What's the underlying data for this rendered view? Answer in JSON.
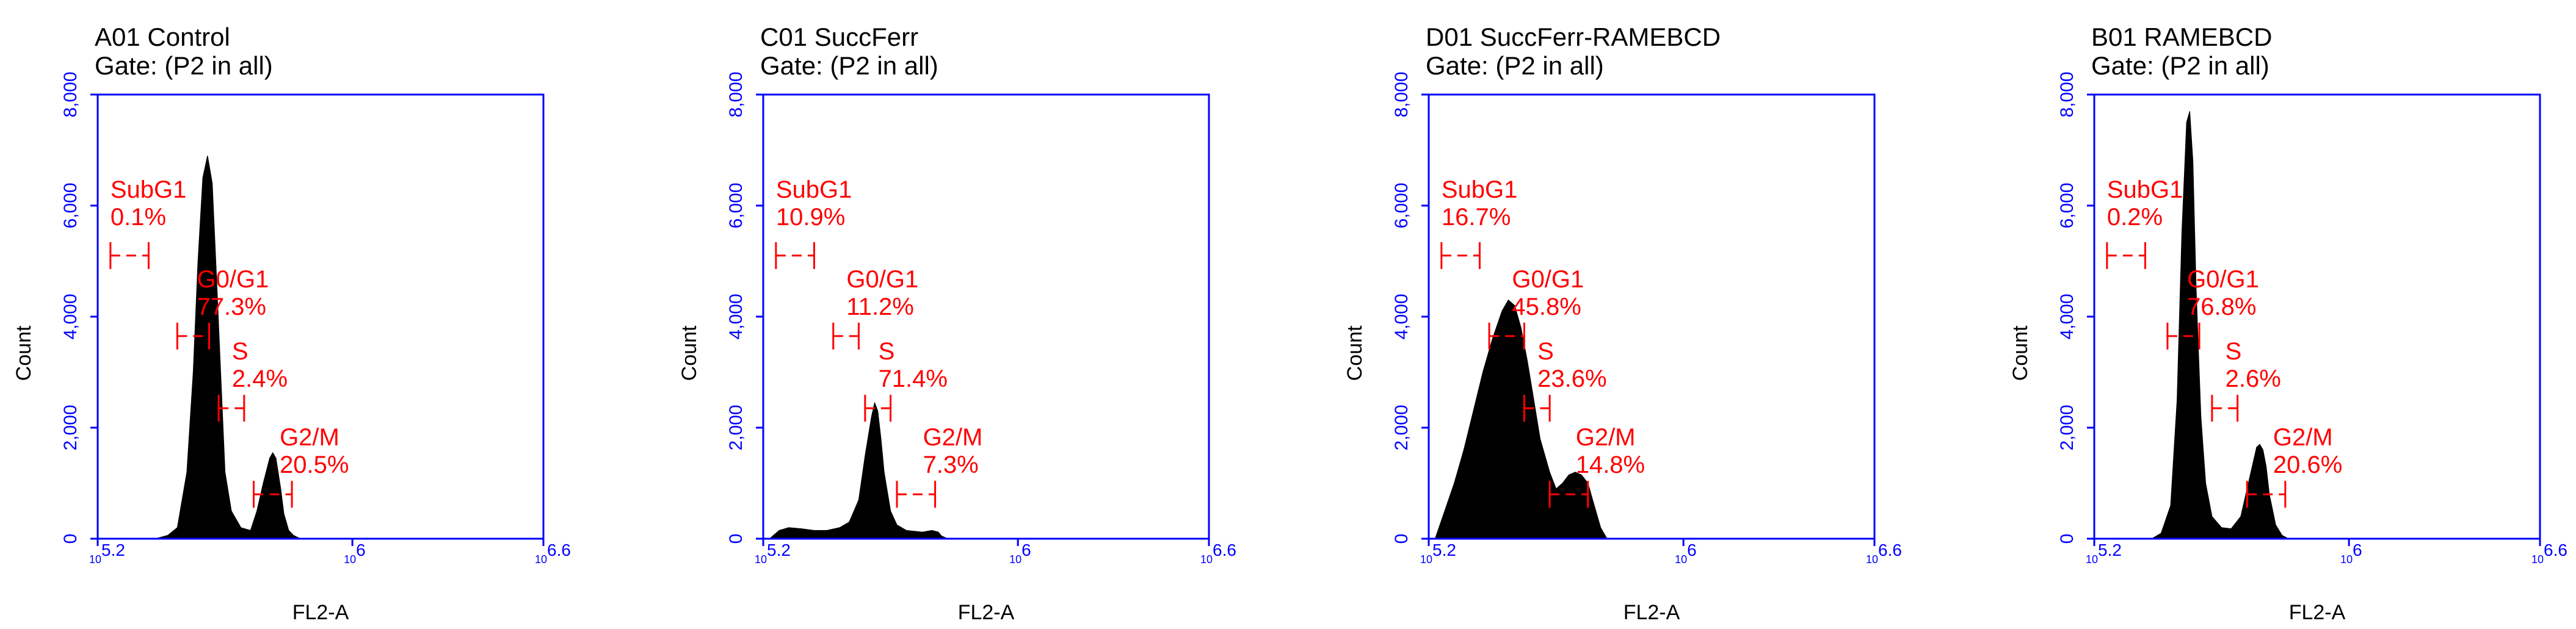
{
  "chart_data": [
    {
      "type": "area",
      "title": "A01 Control",
      "subtitle": "Gate: (P2 in all)",
      "xlabel": "FL2-A",
      "ylabel": "Count",
      "xlim": [
        5.2,
        6.6
      ],
      "ylim": [
        0,
        8000
      ],
      "x_ticks": [
        {
          "base": "10",
          "exp": "5.2"
        },
        {
          "base": "10",
          "exp": "6"
        },
        {
          "base": "10",
          "exp": "6.6"
        }
      ],
      "y_ticks": [
        "0",
        "2,000",
        "4,000",
        "6,000",
        "8,000"
      ],
      "x": [
        5.38,
        5.42,
        5.45,
        5.48,
        5.5,
        5.515,
        5.53,
        5.545,
        5.56,
        5.575,
        5.59,
        5.6,
        5.62,
        5.65,
        5.68,
        5.7,
        5.72,
        5.74,
        5.75,
        5.76,
        5.775,
        5.785,
        5.8,
        5.815,
        5.83,
        5.84
      ],
      "counts": [
        0,
        60,
        200,
        1200,
        3000,
        5000,
        6500,
        6900,
        6400,
        4500,
        2500,
        1200,
        500,
        200,
        150,
        500,
        1000,
        1450,
        1550,
        1450,
        900,
        450,
        150,
        60,
        20,
        0
      ],
      "gates": [
        {
          "name": "SubG1",
          "pct": "0.1%",
          "x1": 5.24,
          "x2": 5.36,
          "y": 5100
        },
        {
          "name": "G0/G1",
          "pct": "77.3%",
          "x1": 5.45,
          "x2": 5.55,
          "y": 3650
        },
        {
          "name": "S",
          "pct": "2.4%",
          "x1": 5.58,
          "x2": 5.66,
          "y": 2350
        },
        {
          "name": "G2/M",
          "pct": "20.5%",
          "x1": 5.69,
          "x2": 5.81,
          "y": 800
        }
      ]
    },
    {
      "type": "area",
      "title": "C01 SuccFerr",
      "subtitle": "Gate: (P2 in all)",
      "xlabel": "FL2-A",
      "ylabel": "Count",
      "xlim": [
        5.2,
        6.6
      ],
      "ylim": [
        0,
        8000
      ],
      "x_ticks": [
        {
          "base": "10",
          "exp": "5.2"
        },
        {
          "base": "10",
          "exp": "6"
        },
        {
          "base": "10",
          "exp": "6.6"
        }
      ],
      "y_ticks": [
        "0",
        "2,000",
        "4,000",
        "6,000",
        "8,000"
      ],
      "x": [
        5.22,
        5.25,
        5.28,
        5.32,
        5.36,
        5.4,
        5.44,
        5.47,
        5.5,
        5.52,
        5.54,
        5.55,
        5.56,
        5.57,
        5.58,
        5.6,
        5.62,
        5.65,
        5.7,
        5.73,
        5.75,
        5.76,
        5.78
      ],
      "counts": [
        0,
        150,
        200,
        180,
        150,
        150,
        200,
        300,
        700,
        1500,
        2200,
        2450,
        2300,
        1800,
        1200,
        500,
        250,
        150,
        120,
        150,
        120,
        50,
        0
      ],
      "gates": [
        {
          "name": "SubG1",
          "pct": "10.9%",
          "x1": 5.24,
          "x2": 5.36,
          "y": 5100
        },
        {
          "name": "G0/G1",
          "pct": "11.2%",
          "x1": 5.42,
          "x2": 5.5,
          "y": 3650
        },
        {
          "name": "S",
          "pct": "71.4%",
          "x1": 5.52,
          "x2": 5.6,
          "y": 2350
        },
        {
          "name": "G2/M",
          "pct": "7.3%",
          "x1": 5.62,
          "x2": 5.74,
          "y": 800
        }
      ]
    },
    {
      "type": "area",
      "title": "D01 SuccFerr-RAMEBCD",
      "subtitle": "Gate: (P2 in all)",
      "xlabel": "FL2-A",
      "ylabel": "Count",
      "xlim": [
        5.2,
        6.6
      ],
      "ylim": [
        0,
        8000
      ],
      "x_ticks": [
        {
          "base": "10",
          "exp": "5.2"
        },
        {
          "base": "10",
          "exp": "6"
        },
        {
          "base": "10",
          "exp": "6.6"
        }
      ],
      "y_ticks": [
        "0",
        "2,000",
        "4,000",
        "6,000",
        "8,000"
      ],
      "x": [
        5.22,
        5.25,
        5.28,
        5.31,
        5.34,
        5.37,
        5.4,
        5.43,
        5.45,
        5.47,
        5.49,
        5.51,
        5.53,
        5.55,
        5.58,
        5.6,
        5.62,
        5.64,
        5.66,
        5.68,
        5.7,
        5.72,
        5.74,
        5.76
      ],
      "counts": [
        0,
        500,
        1000,
        1600,
        2300,
        3000,
        3600,
        4100,
        4300,
        4200,
        3800,
        3200,
        2500,
        1800,
        1200,
        900,
        1000,
        1150,
        1200,
        1150,
        1000,
        600,
        200,
        0
      ],
      "gates": [
        {
          "name": "SubG1",
          "pct": "16.7%",
          "x1": 5.24,
          "x2": 5.36,
          "y": 5100
        },
        {
          "name": "G0/G1",
          "pct": "45.8%",
          "x1": 5.39,
          "x2": 5.5,
          "y": 3650
        },
        {
          "name": "S",
          "pct": "23.6%",
          "x1": 5.5,
          "x2": 5.58,
          "y": 2350
        },
        {
          "name": "G2/M",
          "pct": "14.8%",
          "x1": 5.58,
          "x2": 5.7,
          "y": 800
        }
      ]
    },
    {
      "type": "area",
      "title": "B01 RAMEBCD",
      "subtitle": "Gate: (P2 in all)",
      "xlabel": "FL2-A",
      "ylabel": "Count",
      "xlim": [
        5.2,
        6.6
      ],
      "ylim": [
        0,
        8000
      ],
      "x_ticks": [
        {
          "base": "10",
          "exp": "5.2"
        },
        {
          "base": "10",
          "exp": "6"
        },
        {
          "base": "10",
          "exp": "6.6"
        }
      ],
      "y_ticks": [
        "0",
        "2,000",
        "4,000",
        "6,000",
        "8,000"
      ],
      "x": [
        5.38,
        5.41,
        5.44,
        5.46,
        5.475,
        5.49,
        5.5,
        5.51,
        5.52,
        5.535,
        5.55,
        5.57,
        5.6,
        5.63,
        5.66,
        5.68,
        5.7,
        5.71,
        5.72,
        5.73,
        5.74,
        5.75,
        5.77,
        5.79,
        5.81
      ],
      "counts": [
        0,
        100,
        600,
        2500,
        5500,
        7500,
        7700,
        6800,
        4500,
        2200,
        1000,
        400,
        200,
        180,
        400,
        900,
        1400,
        1650,
        1700,
        1600,
        1300,
        800,
        250,
        60,
        0
      ],
      "gates": [
        {
          "name": "SubG1",
          "pct": "0.2%",
          "x1": 5.24,
          "x2": 5.36,
          "y": 5100
        },
        {
          "name": "G0/G1",
          "pct": "76.8%",
          "x1": 5.43,
          "x2": 5.53,
          "y": 3650
        },
        {
          "name": "S",
          "pct": "2.6%",
          "x1": 5.57,
          "x2": 5.65,
          "y": 2350
        },
        {
          "name": "G2/M",
          "pct": "20.6%",
          "x1": 5.68,
          "x2": 5.8,
          "y": 800
        }
      ]
    }
  ]
}
